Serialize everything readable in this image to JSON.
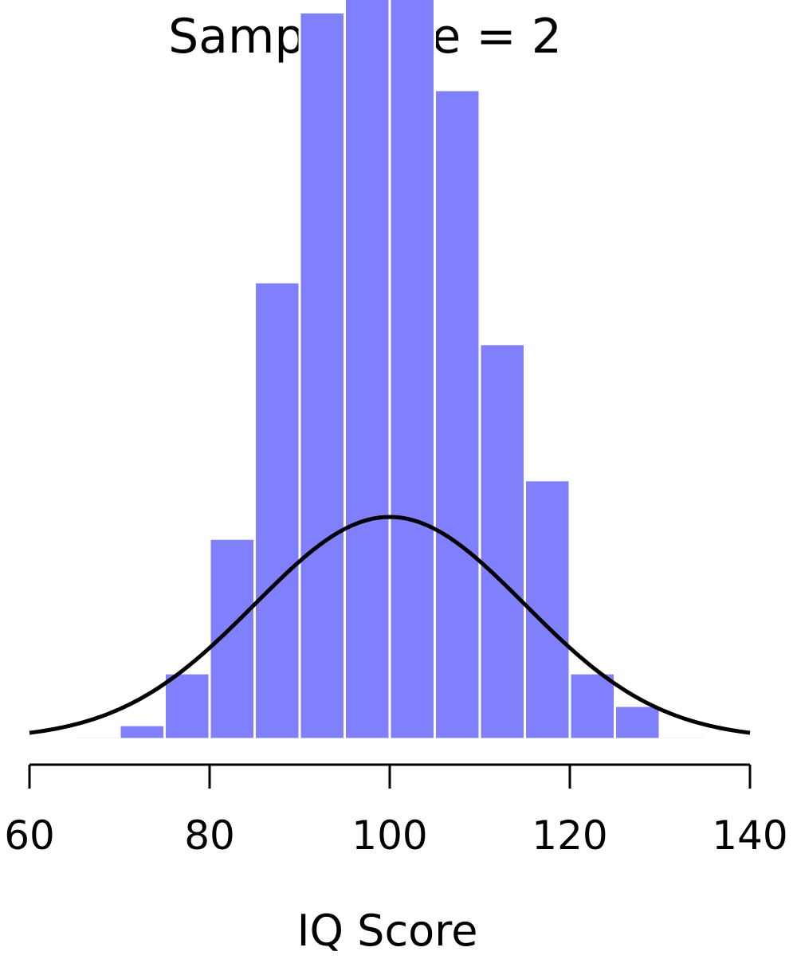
{
  "chart_data": {
    "type": "bar",
    "title": "Sample Size = 2",
    "xlabel": "IQ Score",
    "ylabel": "",
    "xlim": [
      60,
      140
    ],
    "xticks": [
      60,
      80,
      100,
      120,
      140
    ],
    "grid": false,
    "bins": {
      "edges": [
        65,
        70,
        75,
        80,
        85,
        90,
        95,
        100,
        105,
        110,
        115,
        120,
        125,
        130,
        135
      ],
      "density": [
        0.0003,
        0.0017,
        0.0079,
        0.024,
        0.0547,
        0.087,
        0.0987,
        0.1015,
        0.0777,
        0.0473,
        0.031,
        0.0079,
        0.004,
        0.0003
      ]
    },
    "curve": {
      "type": "normal",
      "mean": 100,
      "sd": 15,
      "xrange": [
        60,
        140
      ]
    },
    "colors": {
      "bar": "#8080fc",
      "bar_edge": "#ffffff",
      "curve": "#000000",
      "axis": "#000000"
    }
  }
}
